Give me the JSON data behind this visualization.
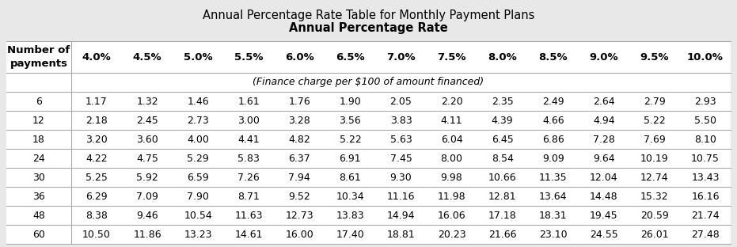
{
  "title1": "Annual Percentage Rate Table for Monthly Payment Plans",
  "title2": "Annual Percentage Rate",
  "subtitle": "(Finance charge per $100 of amount financed)",
  "col_header_label": "Number of\npayments",
  "col_headers": [
    "4.0%",
    "4.5%",
    "5.0%",
    "5.5%",
    "6.0%",
    "6.5%",
    "7.0%",
    "7.5%",
    "8.0%",
    "8.5%",
    "9.0%",
    "9.5%",
    "10.0%"
  ],
  "row_labels": [
    "6",
    "12",
    "18",
    "24",
    "30",
    "36",
    "48",
    "60"
  ],
  "table_data": [
    [
      1.17,
      1.32,
      1.46,
      1.61,
      1.76,
      1.9,
      2.05,
      2.2,
      2.35,
      2.49,
      2.64,
      2.79,
      2.93
    ],
    [
      2.18,
      2.45,
      2.73,
      3.0,
      3.28,
      3.56,
      3.83,
      4.11,
      4.39,
      4.66,
      4.94,
      5.22,
      5.5
    ],
    [
      3.2,
      3.6,
      4.0,
      4.41,
      4.82,
      5.22,
      5.63,
      6.04,
      6.45,
      6.86,
      7.28,
      7.69,
      8.1
    ],
    [
      4.22,
      4.75,
      5.29,
      5.83,
      6.37,
      6.91,
      7.45,
      8.0,
      8.54,
      9.09,
      9.64,
      10.19,
      10.75
    ],
    [
      5.25,
      5.92,
      6.59,
      7.26,
      7.94,
      8.61,
      9.3,
      9.98,
      10.66,
      11.35,
      12.04,
      12.74,
      13.43
    ],
    [
      6.29,
      7.09,
      7.9,
      8.71,
      9.52,
      10.34,
      11.16,
      11.98,
      12.81,
      13.64,
      14.48,
      15.32,
      16.16
    ],
    [
      8.38,
      9.46,
      10.54,
      11.63,
      12.73,
      13.83,
      14.94,
      16.06,
      17.18,
      18.31,
      19.45,
      20.59,
      21.74
    ],
    [
      10.5,
      11.86,
      13.23,
      14.61,
      16.0,
      17.4,
      18.81,
      20.23,
      21.66,
      23.1,
      24.55,
      26.01,
      27.48
    ]
  ],
  "fig_bg": "#e8e8e8",
  "table_bg": "#ffffff",
  "line_color": "#aaaaaa",
  "font_size_title1": 10.5,
  "font_size_title2": 10.5,
  "font_size_subtitle": 9.0,
  "font_size_header": 9.5,
  "font_size_data": 9.0
}
